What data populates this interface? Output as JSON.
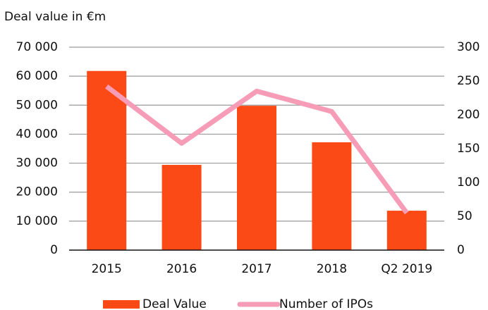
{
  "chart_data": {
    "type": "bar",
    "title": "Deal value in €m",
    "categories": [
      "2015",
      "2016",
      "2017",
      "2018",
      "Q2 2019"
    ],
    "series": [
      {
        "name": "Deal Value",
        "color": "#fc4a16",
        "values": [
          61800,
          29400,
          49800,
          37200,
          13600
        ]
      },
      {
        "name": "Number of IPOs",
        "color": "#f79cb6",
        "axis": "y2",
        "type": "line",
        "values": [
          242,
          158,
          235,
          205,
          55
        ]
      }
    ],
    "ylim": [
      0,
      70000
    ],
    "yticks": [
      0,
      {
        "value": 10000,
        "label": "10 000"
      },
      {
        "value": 20000,
        "label": "20 000"
      },
      {
        "value": 30000,
        "label": "30 000"
      },
      {
        "value": 40000,
        "label": "40 000"
      },
      {
        "value": 50000,
        "label": "50 000"
      },
      {
        "value": 60000,
        "label": "60 000"
      },
      {
        "value": 70000,
        "label": "70 000"
      }
    ],
    "y2lim": [
      0,
      300
    ],
    "y2ticks": [
      0,
      50,
      100,
      150,
      200,
      250,
      300
    ],
    "grid": true,
    "legend": "bottom"
  }
}
